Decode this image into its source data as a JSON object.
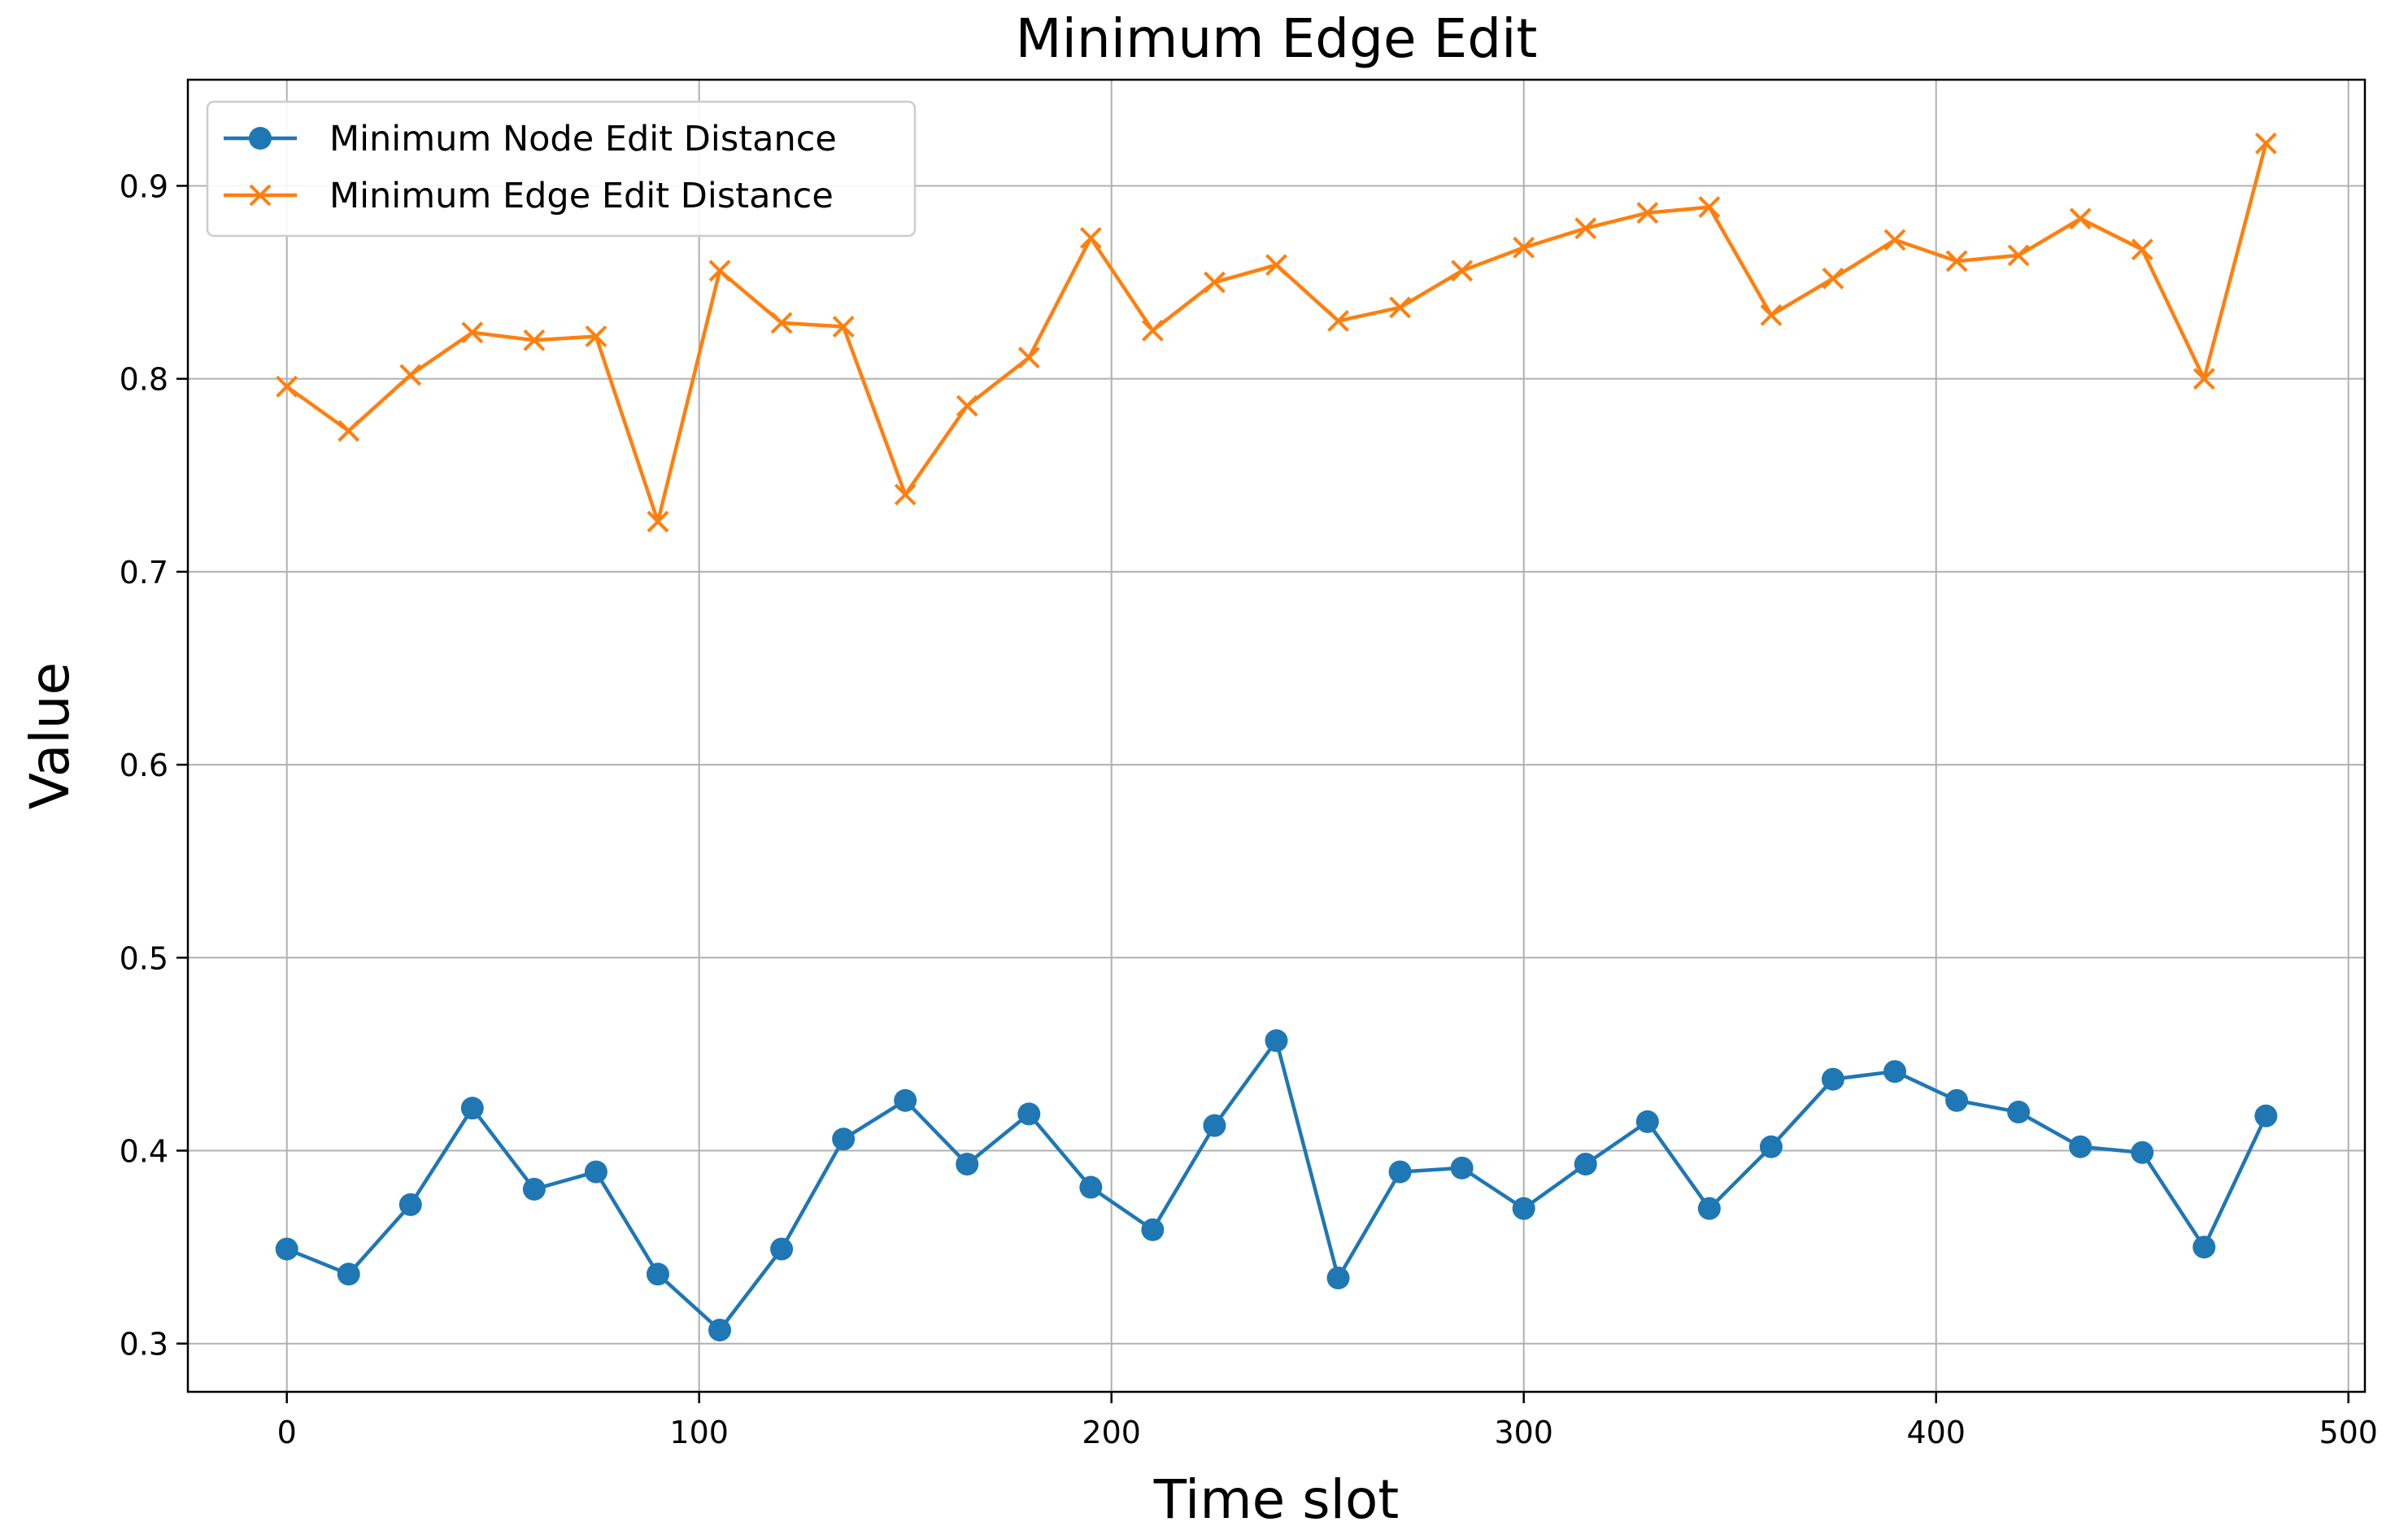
{
  "chart_data": {
    "type": "line",
    "title": "Minimum Edge Edit",
    "xlabel": "Time slot",
    "ylabel": "Value",
    "xlim": [
      -24,
      504
    ],
    "ylim": [
      0.275,
      0.955
    ],
    "xticks": [
      0,
      100,
      200,
      300,
      400,
      500
    ],
    "yticks": [
      0.3,
      0.4,
      0.5,
      0.6,
      0.7,
      0.8,
      0.9
    ],
    "xtick_labels": [
      "0",
      "100",
      "200",
      "300",
      "400",
      "500"
    ],
    "ytick_labels": [
      "0.3",
      "0.4",
      "0.5",
      "0.6",
      "0.7",
      "0.8",
      "0.9"
    ],
    "grid": true,
    "legend_position": "top-left",
    "x": [
      0,
      15,
      30,
      45,
      60,
      75,
      90,
      105,
      120,
      135,
      150,
      165,
      180,
      195,
      210,
      225,
      240,
      255,
      270,
      285,
      300,
      315,
      330,
      345,
      360,
      375,
      390,
      405,
      420,
      435,
      450,
      465,
      480
    ],
    "series": [
      {
        "name": "Minimum Node Edit Distance",
        "color": "#1f77b4",
        "marker": "circle",
        "values": [
          0.349,
          0.336,
          0.372,
          0.422,
          0.38,
          0.389,
          0.336,
          0.307,
          0.349,
          0.406,
          0.426,
          0.393,
          0.419,
          0.381,
          0.359,
          0.413,
          0.457,
          0.334,
          0.389,
          0.391,
          0.37,
          0.393,
          0.415,
          0.37,
          0.402,
          0.437,
          0.441,
          0.426,
          0.42,
          0.402,
          0.399,
          0.35,
          0.418
        ]
      },
      {
        "name": "Minimum Edge Edit Distance",
        "color": "#ff7f0e",
        "marker": "x",
        "values": [
          0.796,
          0.773,
          0.802,
          0.824,
          0.82,
          0.822,
          0.726,
          0.856,
          0.829,
          0.827,
          0.74,
          0.786,
          0.811,
          0.873,
          0.825,
          0.85,
          0.859,
          0.83,
          0.837,
          0.856,
          0.868,
          0.878,
          0.886,
          0.889,
          0.833,
          0.852,
          0.872,
          0.861,
          0.864,
          0.883,
          0.867,
          0.8,
          0.922
        ]
      }
    ]
  }
}
